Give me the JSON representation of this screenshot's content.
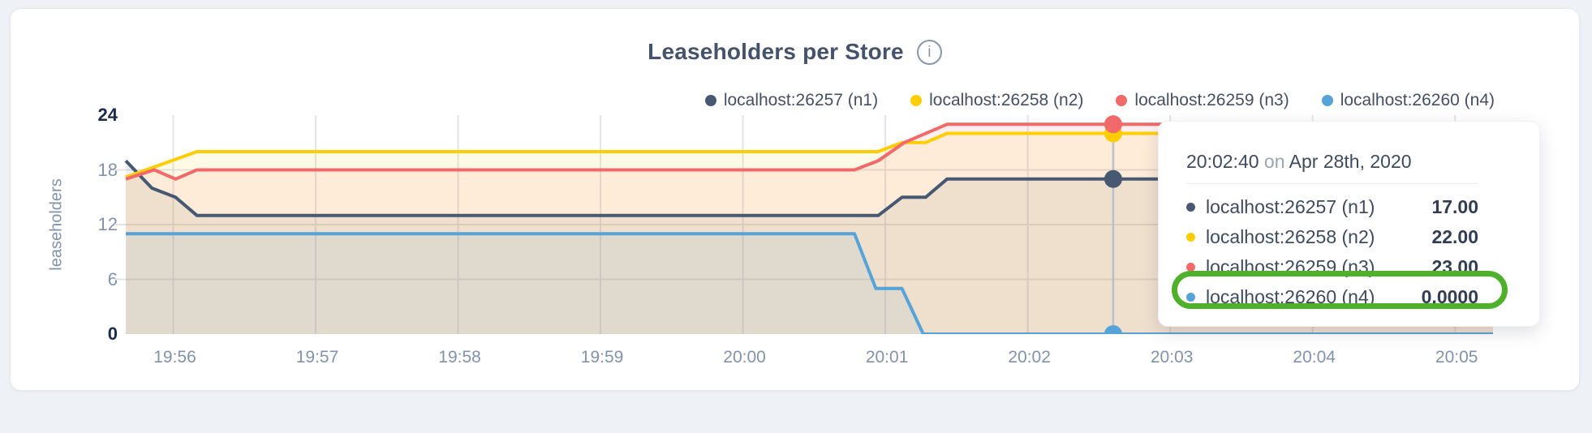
{
  "header": {
    "title": "Leaseholders per Store",
    "info_icon": "i"
  },
  "legend": {
    "items": [
      {
        "label": "localhost:26257 (n1)",
        "color": "#475872"
      },
      {
        "label": "localhost:26258 (n2)",
        "color": "#ffcd02"
      },
      {
        "label": "localhost:26259 (n3)",
        "color": "#f16969"
      },
      {
        "label": "localhost:26260 (n4)",
        "color": "#55a3d9"
      }
    ]
  },
  "chart_data": {
    "type": "area",
    "title": "Leaseholders per Store",
    "ylabel": "leaseholders",
    "ylim": [
      0,
      24
    ],
    "x_domain_seconds": [
      -20,
      556
    ],
    "grid_color": "#e2e4e9",
    "x_ticks": [
      {
        "sec": 0,
        "label": "19:56"
      },
      {
        "sec": 60,
        "label": "19:57"
      },
      {
        "sec": 120,
        "label": "19:58"
      },
      {
        "sec": 180,
        "label": "19:59"
      },
      {
        "sec": 240,
        "label": "20:00"
      },
      {
        "sec": 300,
        "label": "20:01"
      },
      {
        "sec": 360,
        "label": "20:02"
      },
      {
        "sec": 420,
        "label": "20:03"
      },
      {
        "sec": 480,
        "label": "20:04"
      },
      {
        "sec": 540,
        "label": "20:05"
      }
    ],
    "y_ticks": [
      {
        "value": 24,
        "label": "24",
        "bold": true,
        "grid": false
      },
      {
        "value": 18,
        "label": "18",
        "bold": false,
        "grid": true
      },
      {
        "value": 12,
        "label": "12",
        "bold": false,
        "grid": true
      },
      {
        "value": 6,
        "label": "6",
        "bold": false,
        "grid": true
      },
      {
        "value": 0,
        "label": "0",
        "bold": true,
        "grid": false
      }
    ],
    "series": [
      {
        "name": "localhost:26257 (n1)",
        "color": "#475872",
        "fill_opacity": 0.09,
        "points": [
          [
            -20,
            19
          ],
          [
            -9,
            16
          ],
          [
            1,
            15
          ],
          [
            10,
            13
          ],
          [
            297,
            13
          ],
          [
            307,
            15
          ],
          [
            317,
            15
          ],
          [
            326,
            17
          ],
          [
            556,
            17
          ]
        ]
      },
      {
        "name": "localhost:26258 (n2)",
        "color": "#ffcd02",
        "fill_opacity": 0.1,
        "points": [
          [
            -20,
            17.2
          ],
          [
            10,
            20
          ],
          [
            297,
            20
          ],
          [
            307,
            21
          ],
          [
            317,
            21
          ],
          [
            326,
            22
          ],
          [
            556,
            22
          ]
        ]
      },
      {
        "name": "localhost:26259 (n3)",
        "color": "#f16969",
        "fill_opacity": 0.1,
        "points": [
          [
            -20,
            17
          ],
          [
            -8,
            18
          ],
          [
            1,
            17
          ],
          [
            10,
            18
          ],
          [
            287,
            18
          ],
          [
            297,
            19
          ],
          [
            308,
            21
          ],
          [
            326,
            23
          ],
          [
            556,
            23
          ]
        ]
      },
      {
        "name": "localhost:26260 (n4)",
        "color": "#55a3d9",
        "fill_opacity": 0.1,
        "points": [
          [
            -20,
            11
          ],
          [
            287,
            11
          ],
          [
            296,
            5
          ],
          [
            307,
            5
          ],
          [
            316,
            0
          ],
          [
            556,
            0
          ]
        ]
      }
    ],
    "hover": {
      "sec": 396,
      "values": [
        17,
        22,
        23,
        0
      ],
      "crosshair_color": "#b9c0cb"
    }
  },
  "tooltip": {
    "time": "20:02:40",
    "conjunction": " on ",
    "date": "Apr 28th, 2020",
    "rows": [
      {
        "label": "localhost:26257 (n1)",
        "value": "17.00",
        "color": "#475872"
      },
      {
        "label": "localhost:26258 (n2)",
        "value": "22.00",
        "color": "#ffcd02"
      },
      {
        "label": "localhost:26259 (n3)",
        "value": "23.00",
        "color": "#f16969"
      },
      {
        "label": "localhost:26260 (n4)",
        "value": "0.0000",
        "color": "#55a3d9"
      }
    ],
    "highlight_color": "#4fb02b"
  }
}
